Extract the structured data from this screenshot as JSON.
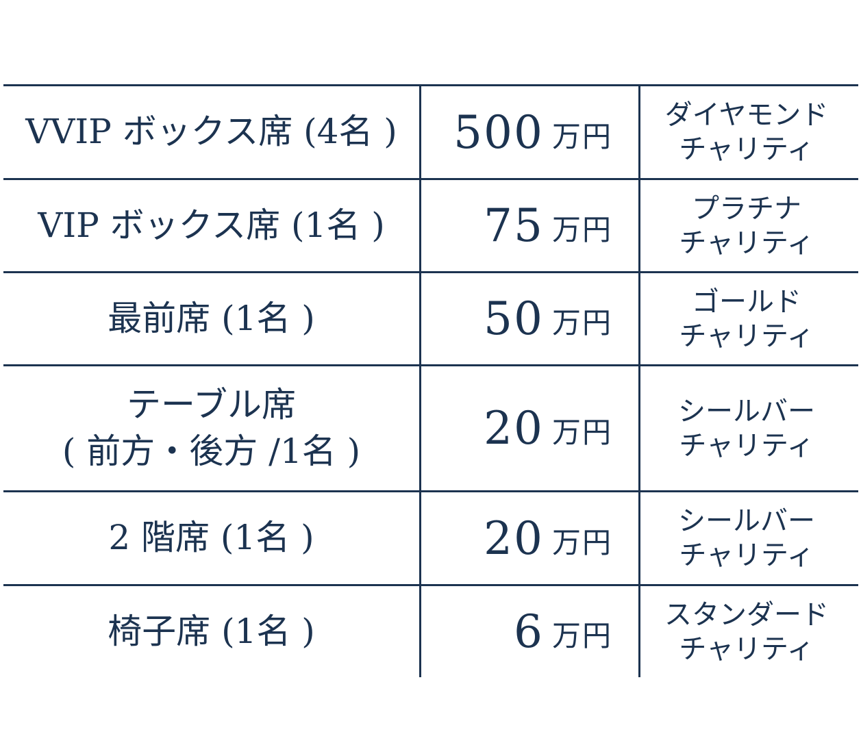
{
  "rows": [
    {
      "seat": "VVIP ボックス席 (4名 )",
      "amount": "500",
      "unit": "万円",
      "tier": "ダイヤモンド\nチャリティ"
    },
    {
      "seat": "VIP ボックス席 (1名 )",
      "amount": "75",
      "unit": "万円",
      "tier": "プラチナ\nチャリティ"
    },
    {
      "seat": "最前席 (1名 )",
      "amount": "50",
      "unit": "万円",
      "tier": "ゴールド\nチャリティ"
    },
    {
      "seat": "テーブル席\n( 前方・後方 /1名 )",
      "amount": "20",
      "unit": "万円",
      "tier": "シールバー\nチャリティ"
    },
    {
      "seat": "2 階席 (1名 )",
      "amount": "20",
      "unit": "万円",
      "tier": "シールバー\nチャリティ"
    },
    {
      "seat": "椅子席 (1名 )",
      "amount": "6",
      "unit": "万円",
      "tier": "スタンダード\nチャリティ"
    }
  ],
  "colors": {
    "text": "#1c3350",
    "rule": "#1c3350",
    "background": "#ffffff"
  }
}
